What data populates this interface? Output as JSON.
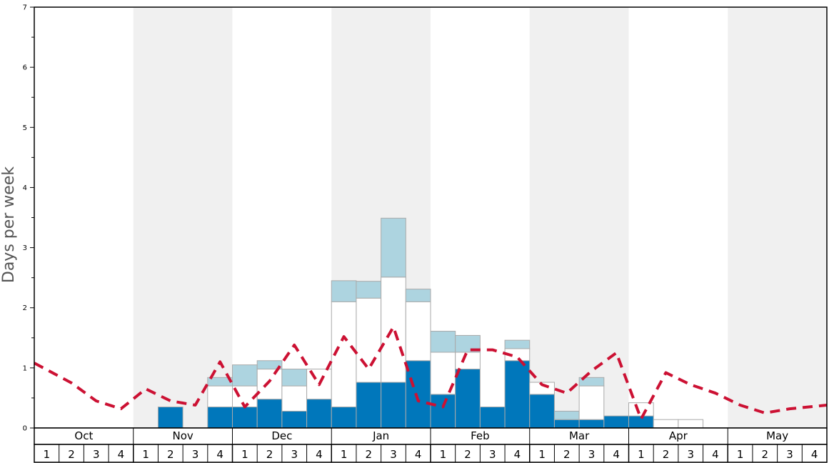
{
  "chart_data": {
    "type": "bar",
    "ylabel": "Days per week",
    "ylim": [
      0,
      7
    ],
    "yticks": [
      "0",
      "1",
      "2",
      "3",
      "4",
      "5",
      "6",
      "7"
    ],
    "months": [
      "Oct",
      "Nov",
      "Dec",
      "Jan",
      "Feb",
      "Mar",
      "Apr",
      "May"
    ],
    "weeks": [
      "1",
      "2",
      "3",
      "4"
    ],
    "colors": {
      "band": "#f0f0f0",
      "bottom": "#0077bb",
      "middle": "#ffffff",
      "top": "#add4e0",
      "bar_border": "#aaaaaa",
      "line": "#cc1133"
    },
    "series": [
      {
        "values": [
          0,
          0,
          0,
          0,
          0,
          0.35,
          0,
          0.35,
          0.35,
          0.48,
          0.28,
          0.48,
          0.35,
          0.76,
          0.76,
          1.12,
          0.56,
          0.98,
          0.35,
          1.12,
          0.56,
          0.14,
          0.14,
          0.2,
          0.2,
          0,
          0,
          0,
          0,
          0,
          0,
          0
        ]
      },
      {
        "values": [
          0,
          0,
          0,
          0,
          0,
          0,
          0,
          0.35,
          0.35,
          0.5,
          0.42,
          0.5,
          1.75,
          1.4,
          1.75,
          0.98,
          0.7,
          0.28,
          0,
          0.2,
          0.2,
          0,
          0.56,
          0,
          0.22,
          0.14,
          0.14,
          0,
          0,
          0,
          0,
          0
        ]
      },
      {
        "values": [
          0,
          0,
          0,
          0,
          0,
          0,
          0,
          0.14,
          0.35,
          0.14,
          0.28,
          0,
          0.35,
          0.28,
          0.98,
          0.21,
          0.35,
          0.28,
          0,
          0.14,
          0,
          0.14,
          0.14,
          0,
          0,
          0,
          0,
          0,
          0,
          0,
          0,
          0
        ]
      },
      {
        "values": [
          1.08,
          0.75,
          0.45,
          0.32,
          0.65,
          0.45,
          0.38,
          1.1,
          0.35,
          0.78,
          1.38,
          0.72,
          1.52,
          0.98,
          1.68,
          0.45,
          0.35,
          1.3,
          1.3,
          1.18,
          0.72,
          0.58,
          0.95,
          1.25,
          0.15,
          0.92,
          0.72,
          0.58,
          0.38,
          0.25,
          0.32,
          0.38
        ]
      }
    ]
  }
}
